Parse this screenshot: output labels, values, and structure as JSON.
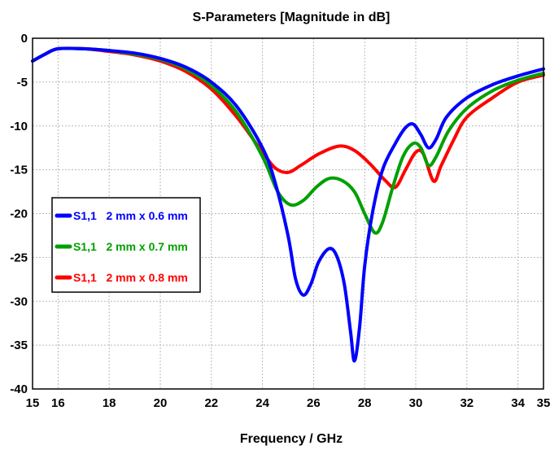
{
  "chart_data": {
    "type": "line",
    "title": "S-Parameters [Magnitude in dB]",
    "xlabel": "Frequency / GHz",
    "ylabel": "",
    "xlim": [
      15,
      35
    ],
    "ylim": [
      -40,
      0
    ],
    "x_ticks": [
      "15",
      "16",
      "18",
      "20",
      "22",
      "24",
      "26",
      "28",
      "30",
      "32",
      "34",
      "35"
    ],
    "y_ticks": [
      "0",
      "-5",
      "-10",
      "-15",
      "-20",
      "-25",
      "-30",
      "-35",
      "-40"
    ],
    "grid": true,
    "legend_position": "left",
    "series": [
      {
        "name": "S1,1   2 mm x 0.6 mm",
        "color": "#0000ff",
        "points": [
          [
            15,
            -2.6
          ],
          [
            15.5,
            -1.8
          ],
          [
            16,
            -1.2
          ],
          [
            17,
            -1.2
          ],
          [
            18,
            -1.4
          ],
          [
            19,
            -1.7
          ],
          [
            20,
            -2.3
          ],
          [
            21,
            -3.3
          ],
          [
            22,
            -5.0
          ],
          [
            23,
            -7.8
          ],
          [
            24,
            -12.5
          ],
          [
            24.5,
            -16.5
          ],
          [
            25,
            -22.5
          ],
          [
            25.3,
            -27.5
          ],
          [
            25.6,
            -29.3
          ],
          [
            25.9,
            -28.0
          ],
          [
            26.2,
            -25.5
          ],
          [
            26.6,
            -24.0
          ],
          [
            26.9,
            -24.8
          ],
          [
            27.2,
            -28.0
          ],
          [
            27.45,
            -33.5
          ],
          [
            27.6,
            -36.8
          ],
          [
            27.8,
            -33.0
          ],
          [
            28.0,
            -26.0
          ],
          [
            28.3,
            -20.0
          ],
          [
            28.7,
            -15.0
          ],
          [
            29.2,
            -12.0
          ],
          [
            29.6,
            -10.2
          ],
          [
            29.9,
            -9.8
          ],
          [
            30.2,
            -11.0
          ],
          [
            30.5,
            -12.5
          ],
          [
            30.8,
            -11.5
          ],
          [
            31.2,
            -9.0
          ],
          [
            32,
            -6.8
          ],
          [
            33,
            -5.3
          ],
          [
            34,
            -4.3
          ],
          [
            35,
            -3.5
          ]
        ]
      },
      {
        "name": "S1,1   2 mm x 0.7 mm",
        "color": "#00a000",
        "points": [
          [
            15,
            -2.6
          ],
          [
            15.5,
            -1.8
          ],
          [
            16,
            -1.2
          ],
          [
            17,
            -1.2
          ],
          [
            18,
            -1.4
          ],
          [
            19,
            -1.8
          ],
          [
            20,
            -2.4
          ],
          [
            21,
            -3.5
          ],
          [
            22,
            -5.4
          ],
          [
            23,
            -8.5
          ],
          [
            24,
            -13.5
          ],
          [
            24.6,
            -17.5
          ],
          [
            25.1,
            -19.0
          ],
          [
            25.6,
            -18.5
          ],
          [
            26.1,
            -17.0
          ],
          [
            26.6,
            -16.0
          ],
          [
            27.1,
            -16.2
          ],
          [
            27.6,
            -17.5
          ],
          [
            28.0,
            -20.0
          ],
          [
            28.4,
            -22.2
          ],
          [
            28.7,
            -21.0
          ],
          [
            29.1,
            -17.0
          ],
          [
            29.5,
            -13.5
          ],
          [
            29.9,
            -12.0
          ],
          [
            30.2,
            -12.5
          ],
          [
            30.5,
            -14.5
          ],
          [
            30.8,
            -13.5
          ],
          [
            31.3,
            -10.5
          ],
          [
            32,
            -8.0
          ],
          [
            33,
            -6.0
          ],
          [
            34,
            -4.8
          ],
          [
            35,
            -4.0
          ]
        ]
      },
      {
        "name": "S1,1   2 mm x 0.8 mm",
        "color": "#ff0000",
        "points": [
          [
            15,
            -2.6
          ],
          [
            15.5,
            -1.8
          ],
          [
            16,
            -1.2
          ],
          [
            17,
            -1.2
          ],
          [
            18,
            -1.5
          ],
          [
            19,
            -1.9
          ],
          [
            20,
            -2.6
          ],
          [
            21,
            -3.8
          ],
          [
            22,
            -5.8
          ],
          [
            23,
            -9.0
          ],
          [
            24,
            -13.0
          ],
          [
            24.5,
            -14.8
          ],
          [
            25,
            -15.3
          ],
          [
            25.5,
            -14.5
          ],
          [
            26.2,
            -13.2
          ],
          [
            27,
            -12.3
          ],
          [
            27.6,
            -12.8
          ],
          [
            28.2,
            -14.3
          ],
          [
            28.8,
            -16.2
          ],
          [
            29.2,
            -17.0
          ],
          [
            29.6,
            -15.0
          ],
          [
            30.0,
            -13.0
          ],
          [
            30.3,
            -13.2
          ],
          [
            30.7,
            -16.3
          ],
          [
            31.0,
            -14.5
          ],
          [
            31.5,
            -11.5
          ],
          [
            32,
            -9.0
          ],
          [
            33,
            -6.8
          ],
          [
            34,
            -5.0
          ],
          [
            35,
            -4.2
          ]
        ]
      }
    ]
  }
}
